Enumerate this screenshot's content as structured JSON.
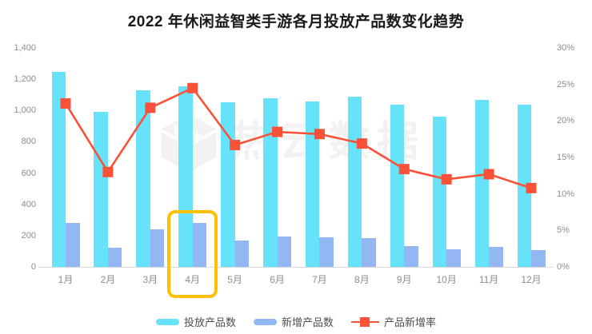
{
  "title": "2022 年休闲益智类手游各月投放产品数变化趋势",
  "watermark_text": "热云数据",
  "colors": {
    "launched_bar": "#66E3FA",
    "new_bar": "#92B7F3",
    "rate_line": "#FA5238",
    "highlight_box": "#FFC000",
    "axis_text": "#8C8C8C",
    "legend_text": "#4D4D4D",
    "axis_line": "#D9D9D9",
    "watermark": "#F2F2F2"
  },
  "chart_data": {
    "type": "bar",
    "subtype": "bar-line-combo",
    "title": "2022 年休闲益智类手游各月投放产品数变化趋势",
    "categories": [
      "1月",
      "2月",
      "3月",
      "4月",
      "5月",
      "6月",
      "7月",
      "8月",
      "9月",
      "10月",
      "11月",
      "12月"
    ],
    "series": [
      {
        "name": "投放产品数",
        "type": "bar",
        "y_axis": "left",
        "color": "#66E3FA",
        "values": [
          1245,
          990,
          1130,
          1155,
          1055,
          1080,
          1060,
          1090,
          1035,
          960,
          1070,
          1035
        ]
      },
      {
        "name": "新增产品数",
        "type": "bar",
        "y_axis": "left",
        "color": "#92B7F3",
        "values": [
          280,
          125,
          240,
          280,
          170,
          195,
          190,
          185,
          135,
          110,
          130,
          105
        ]
      },
      {
        "name": "产品新增率",
        "type": "line",
        "y_axis": "right",
        "color": "#FA5238",
        "marker": "square",
        "unit": "%",
        "values": [
          22.4,
          13.0,
          21.8,
          24.5,
          16.7,
          18.5,
          18.2,
          16.9,
          13.4,
          12.0,
          12.7,
          10.8
        ]
      }
    ],
    "left_axis": {
      "min": 0,
      "max": 1400,
      "step": 200
    },
    "right_axis": {
      "min": 0,
      "max": 30,
      "step": 5,
      "unit": "%"
    },
    "grid": false,
    "legend_position": "bottom",
    "annotation": {
      "type": "highlight-box",
      "category": "4月",
      "color": "#FFC000"
    }
  }
}
